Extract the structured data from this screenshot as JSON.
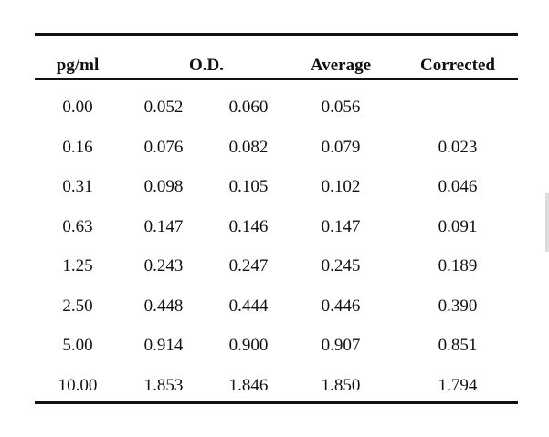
{
  "table": {
    "headers": {
      "concentration": "pg/ml",
      "od": "O.D.",
      "average": "Average",
      "corrected": "Corrected"
    },
    "rows": [
      {
        "conc": "0.00",
        "od1": "0.052",
        "od2": "0.060",
        "avg": "0.056",
        "corr": ""
      },
      {
        "conc": "0.16",
        "od1": "0.076",
        "od2": "0.082",
        "avg": "0.079",
        "corr": "0.023"
      },
      {
        "conc": "0.31",
        "od1": "0.098",
        "od2": "0.105",
        "avg": "0.102",
        "corr": "0.046"
      },
      {
        "conc": "0.63",
        "od1": "0.147",
        "od2": "0.146",
        "avg": "0.147",
        "corr": "0.091"
      },
      {
        "conc": "1.25",
        "od1": "0.243",
        "od2": "0.247",
        "avg": "0.245",
        "corr": "0.189"
      },
      {
        "conc": "2.50",
        "od1": "0.448",
        "od2": "0.444",
        "avg": "0.446",
        "corr": "0.390"
      },
      {
        "conc": "5.00",
        "od1": "0.914",
        "od2": "0.900",
        "avg": "0.907",
        "corr": "0.851"
      },
      {
        "conc": "10.00",
        "od1": "1.853",
        "od2": "1.846",
        "avg": "1.850",
        "corr": "1.794"
      }
    ]
  }
}
